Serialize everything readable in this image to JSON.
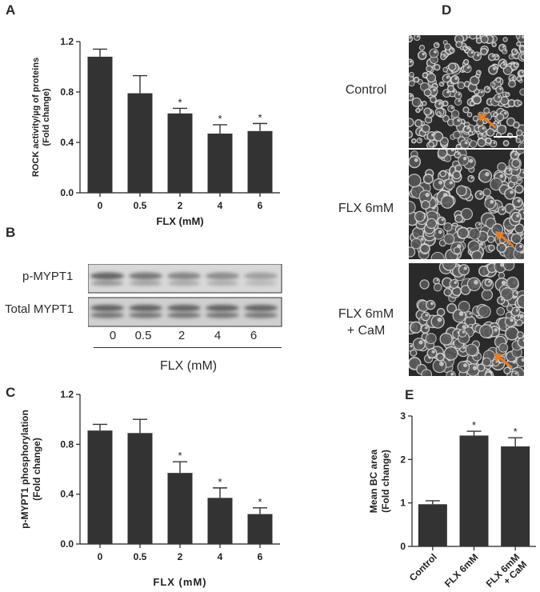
{
  "panels": {
    "A": "A",
    "B": "B",
    "C": "C",
    "D": "D",
    "E": "E"
  },
  "chart_data": [
    {
      "id": "A",
      "type": "bar",
      "categories": [
        "0",
        "0.5",
        "2",
        "4",
        "6"
      ],
      "values": [
        1.08,
        0.79,
        0.63,
        0.47,
        0.49
      ],
      "errors": [
        0.06,
        0.14,
        0.04,
        0.07,
        0.06
      ],
      "significant": [
        false,
        false,
        true,
        true,
        true
      ],
      "ylabel_lines": [
        "ROCK activity/µg of proteins",
        "(Fold change)"
      ],
      "xlabel": "FLX (mM)",
      "ylim": [
        0,
        1.2
      ],
      "yticks": [
        0.0,
        0.4,
        0.8,
        1.2
      ],
      "ytick_labels": [
        "0.0",
        "0.4",
        "0.8",
        "1.2"
      ],
      "grid": false
    },
    {
      "id": "C",
      "type": "bar",
      "categories": [
        "0",
        "0.5",
        "2",
        "4",
        "6"
      ],
      "values": [
        0.91,
        0.89,
        0.57,
        0.37,
        0.24
      ],
      "errors": [
        0.05,
        0.11,
        0.09,
        0.08,
        0.05
      ],
      "significant": [
        false,
        false,
        true,
        true,
        true
      ],
      "ylabel_lines": [
        "p-MYPT1 phosphorylation",
        "(Fold change)"
      ],
      "xlabel": "FLX (mM)",
      "ylim": [
        0,
        1.2
      ],
      "yticks": [
        0.0,
        0.4,
        0.8,
        1.2
      ],
      "ytick_labels": [
        "0.0",
        "0.4",
        "0.8",
        "1.2"
      ],
      "grid": false
    },
    {
      "id": "E",
      "type": "bar",
      "categories": [
        "Control",
        "FLX 6mM",
        "FLX 6mM\n+ CaM"
      ],
      "values": [
        0.97,
        2.55,
        2.3
      ],
      "errors": [
        0.08,
        0.1,
        0.2
      ],
      "significant": [
        false,
        true,
        true
      ],
      "ylabel_lines": [
        "Mean BC area",
        "(Fold change)"
      ],
      "xlabel": "",
      "ylim": [
        0,
        3
      ],
      "yticks": [
        0,
        1,
        2,
        3
      ],
      "ytick_labels": [
        "0",
        "1",
        "2",
        "3"
      ],
      "grid": false
    }
  ],
  "significance_marker": "*",
  "western_blot": {
    "rows": [
      "p-MYPT1",
      "Total MYPT1"
    ],
    "lanes": [
      "0",
      "0.5",
      "2",
      "4",
      "6"
    ],
    "band_intensity_p_mypt1": [
      0.85,
      0.7,
      0.6,
      0.55,
      0.4
    ],
    "band_intensity_total": [
      0.8,
      0.8,
      0.8,
      0.8,
      0.78
    ],
    "xlabel": "FLX (mM)"
  },
  "micrographs": {
    "labels": [
      "Control",
      "FLX 6mM",
      "FLX 6mM\n+ CaM"
    ],
    "arrow_color": "#e67e22"
  },
  "colors": {
    "bar": "#333333",
    "axis": "#222222",
    "arrow": "#e67e22"
  }
}
